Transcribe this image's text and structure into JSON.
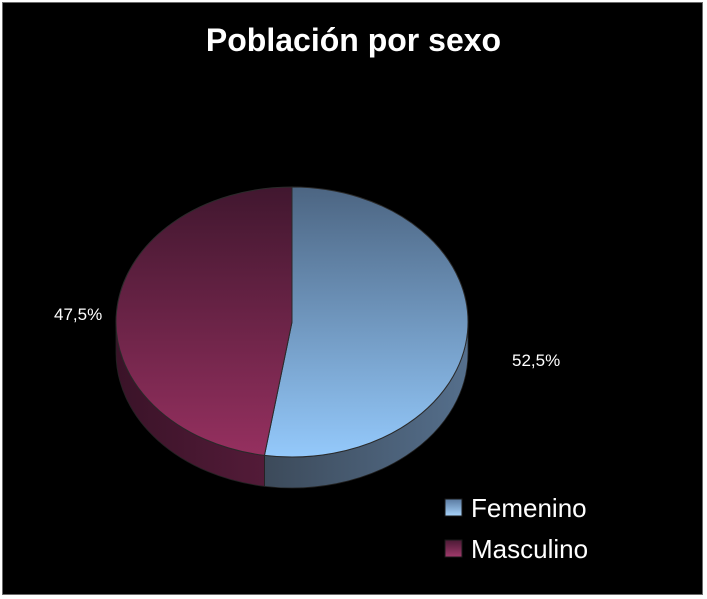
{
  "chart_data": {
    "type": "pie",
    "title": "Población por sexo",
    "categories": [
      "Femenino",
      "Masculino"
    ],
    "values": [
      52.5,
      47.5
    ],
    "data_labels": [
      "52,5%",
      "47,5%"
    ],
    "legend": {
      "position": "bottom-right",
      "entries": [
        "Femenino",
        "Masculino"
      ]
    },
    "colors": [
      "#8fc3f2",
      "#8e2f61"
    ],
    "style": "3d"
  }
}
